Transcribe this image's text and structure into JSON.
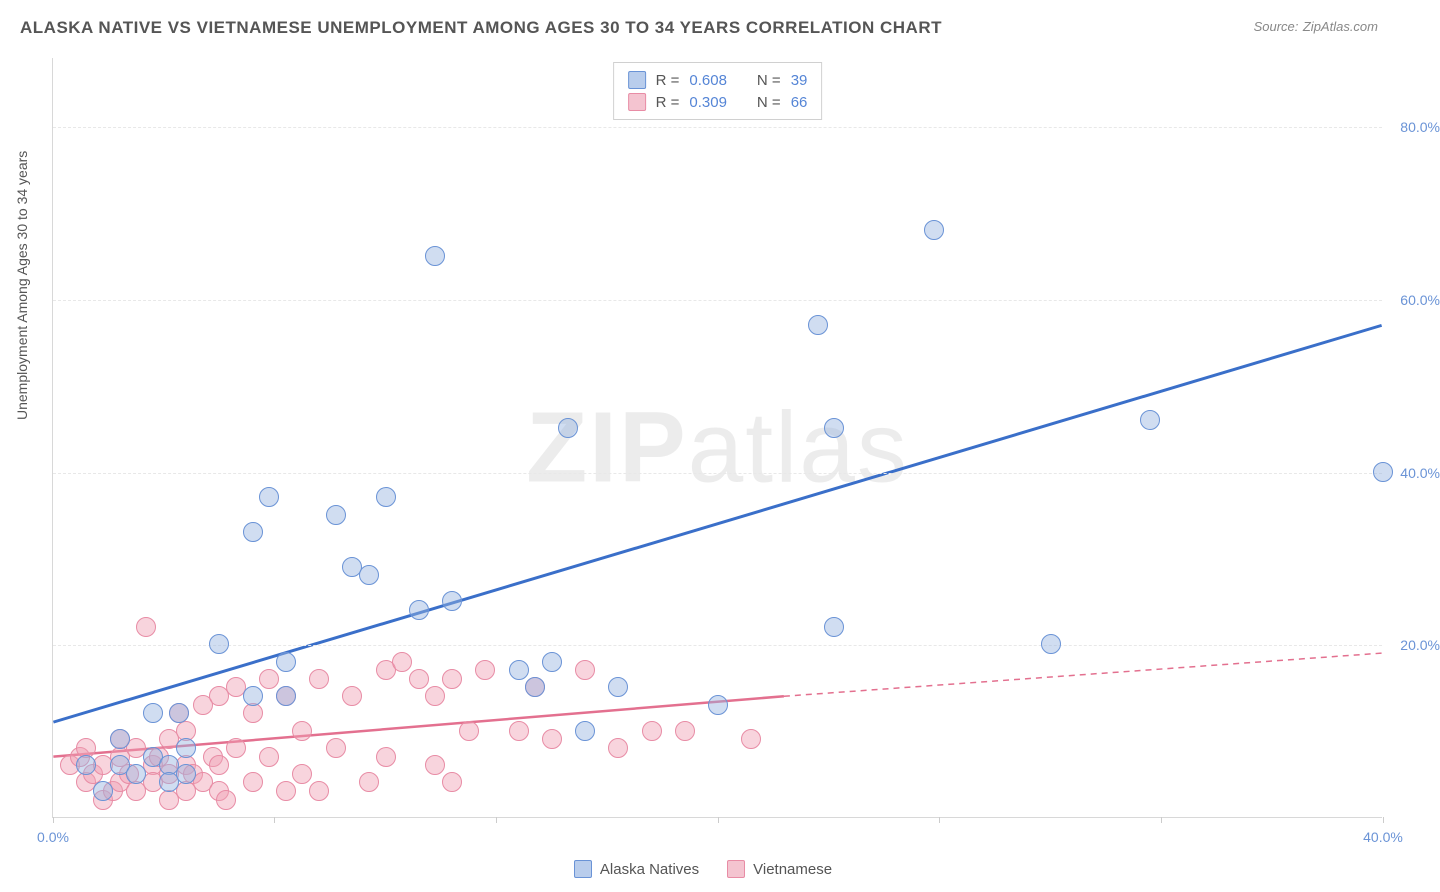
{
  "title": "ALASKA NATIVE VS VIETNAMESE UNEMPLOYMENT AMONG AGES 30 TO 34 YEARS CORRELATION CHART",
  "source_label": "Source:",
  "source_value": "ZipAtlas.com",
  "y_axis_title": "Unemployment Among Ages 30 to 34 years",
  "watermark": {
    "bold": "ZIP",
    "rest": "atlas"
  },
  "chart": {
    "type": "scatter",
    "xlim": [
      0,
      40
    ],
    "ylim": [
      0,
      88
    ],
    "x_ticks": [
      0,
      6.66,
      13.33,
      20,
      26.66,
      33.33,
      40
    ],
    "x_tick_labels": {
      "0": "0.0%",
      "40": "40.0%"
    },
    "y_ticks": [
      20,
      40,
      60,
      80
    ],
    "y_tick_labels": [
      "20.0%",
      "40.0%",
      "60.0%",
      "80.0%"
    ],
    "grid_color": "#e8e8e8",
    "background_color": "#ffffff",
    "marker_radius": 10,
    "marker_opacity": 0.55,
    "marker_stroke_width": 1.2
  },
  "series": {
    "alaska": {
      "label": "Alaska Natives",
      "color": "#6a93d6",
      "fill": "rgba(150,180,225,0.45)",
      "stroke": "#6a93d6",
      "R": "0.608",
      "N": "39",
      "trend": {
        "x1": 0,
        "y1": 11,
        "x2": 40,
        "y2": 57,
        "dash": false,
        "width": 3
      },
      "points": [
        [
          1,
          6
        ],
        [
          1.5,
          3
        ],
        [
          2,
          9
        ],
        [
          2,
          6
        ],
        [
          2.5,
          5
        ],
        [
          3,
          7
        ],
        [
          3,
          12
        ],
        [
          3.5,
          6
        ],
        [
          3.5,
          4
        ],
        [
          3.8,
          12
        ],
        [
          4,
          5
        ],
        [
          4,
          8
        ],
        [
          5,
          20
        ],
        [
          6,
          14
        ],
        [
          6,
          33
        ],
        [
          6.5,
          37
        ],
        [
          7,
          18
        ],
        [
          7,
          14
        ],
        [
          8.5,
          35
        ],
        [
          9,
          29
        ],
        [
          9.5,
          28
        ],
        [
          10,
          37
        ],
        [
          11,
          24
        ],
        [
          11.5,
          65
        ],
        [
          12,
          25
        ],
        [
          14,
          17
        ],
        [
          14.5,
          15
        ],
        [
          15,
          18
        ],
        [
          15.5,
          45
        ],
        [
          16,
          10
        ],
        [
          17,
          15
        ],
        [
          20,
          13
        ],
        [
          23,
          57
        ],
        [
          23.5,
          45
        ],
        [
          23.5,
          22
        ],
        [
          26.5,
          68
        ],
        [
          30,
          20
        ],
        [
          33,
          46
        ],
        [
          40,
          40
        ]
      ]
    },
    "vietnamese": {
      "label": "Vietnamese",
      "color": "#e88ca5",
      "fill": "rgba(240,160,180,0.45)",
      "stroke": "#e88ca5",
      "R": "0.309",
      "N": "66",
      "trend_solid": {
        "x1": 0,
        "y1": 7,
        "x2": 22,
        "y2": 14,
        "width": 2.5
      },
      "trend_dash": {
        "x1": 22,
        "y1": 14,
        "x2": 40,
        "y2": 19,
        "width": 1.5
      },
      "points": [
        [
          0.5,
          6
        ],
        [
          0.8,
          7
        ],
        [
          1,
          4
        ],
        [
          1,
          8
        ],
        [
          1.2,
          5
        ],
        [
          1.5,
          6
        ],
        [
          1.5,
          2
        ],
        [
          1.8,
          3
        ],
        [
          2,
          7
        ],
        [
          2,
          4
        ],
        [
          2,
          9
        ],
        [
          2.3,
          5
        ],
        [
          2.5,
          8
        ],
        [
          2.5,
          3
        ],
        [
          2.8,
          22
        ],
        [
          3,
          6
        ],
        [
          3,
          4
        ],
        [
          3.2,
          7
        ],
        [
          3.5,
          5
        ],
        [
          3.5,
          9
        ],
        [
          3.5,
          2
        ],
        [
          3.8,
          12
        ],
        [
          4,
          6
        ],
        [
          4,
          3
        ],
        [
          4,
          10
        ],
        [
          4.2,
          5
        ],
        [
          4.5,
          13
        ],
        [
          4.5,
          4
        ],
        [
          4.8,
          7
        ],
        [
          5,
          14
        ],
        [
          5,
          3
        ],
        [
          5,
          6
        ],
        [
          5.2,
          2
        ],
        [
          5.5,
          8
        ],
        [
          5.5,
          15
        ],
        [
          6,
          12
        ],
        [
          6,
          4
        ],
        [
          6.5,
          16
        ],
        [
          6.5,
          7
        ],
        [
          7,
          14
        ],
        [
          7,
          3
        ],
        [
          7.5,
          5
        ],
        [
          7.5,
          10
        ],
        [
          8,
          16
        ],
        [
          8,
          3
        ],
        [
          8.5,
          8
        ],
        [
          9,
          14
        ],
        [
          9.5,
          4
        ],
        [
          10,
          17
        ],
        [
          10,
          7
        ],
        [
          10.5,
          18
        ],
        [
          11,
          16
        ],
        [
          11.5,
          14
        ],
        [
          11.5,
          6
        ],
        [
          12,
          16
        ],
        [
          12,
          4
        ],
        [
          12.5,
          10
        ],
        [
          13,
          17
        ],
        [
          14,
          10
        ],
        [
          14.5,
          15
        ],
        [
          15,
          9
        ],
        [
          16,
          17
        ],
        [
          17,
          8
        ],
        [
          18,
          10
        ],
        [
          19,
          10
        ],
        [
          21,
          9
        ]
      ]
    }
  },
  "stats_labels": {
    "R": "R =",
    "N": "N ="
  },
  "legend_swatches": {
    "alaska": {
      "fill": "#b9cdec",
      "border": "#6a93d6"
    },
    "vietnamese": {
      "fill": "#f4c4d0",
      "border": "#e88ca5"
    }
  }
}
